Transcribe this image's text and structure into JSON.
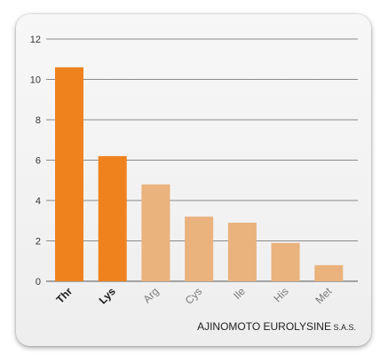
{
  "chart_data": {
    "type": "bar",
    "categories": [
      "Thr",
      "Lys",
      "Arg",
      "Cys",
      "Ile",
      "His",
      "Met"
    ],
    "values": [
      10.6,
      6.2,
      4.8,
      3.2,
      2.9,
      1.9,
      0.8
    ],
    "emphasized": [
      true,
      true,
      false,
      false,
      false,
      false,
      false
    ],
    "ylim": [
      0,
      12
    ],
    "yticks": [
      0,
      2,
      4,
      6,
      8,
      10,
      12
    ],
    "grid": true,
    "colors": {
      "emphasized": "#f0821e",
      "muted": "#eab27c",
      "label_emphasized": "#1a1a1a",
      "label_muted": "#7a7a7a"
    }
  },
  "credit": {
    "main": "AJINOMOTO EUROLYSINE",
    "suffix": " S.A.S."
  }
}
